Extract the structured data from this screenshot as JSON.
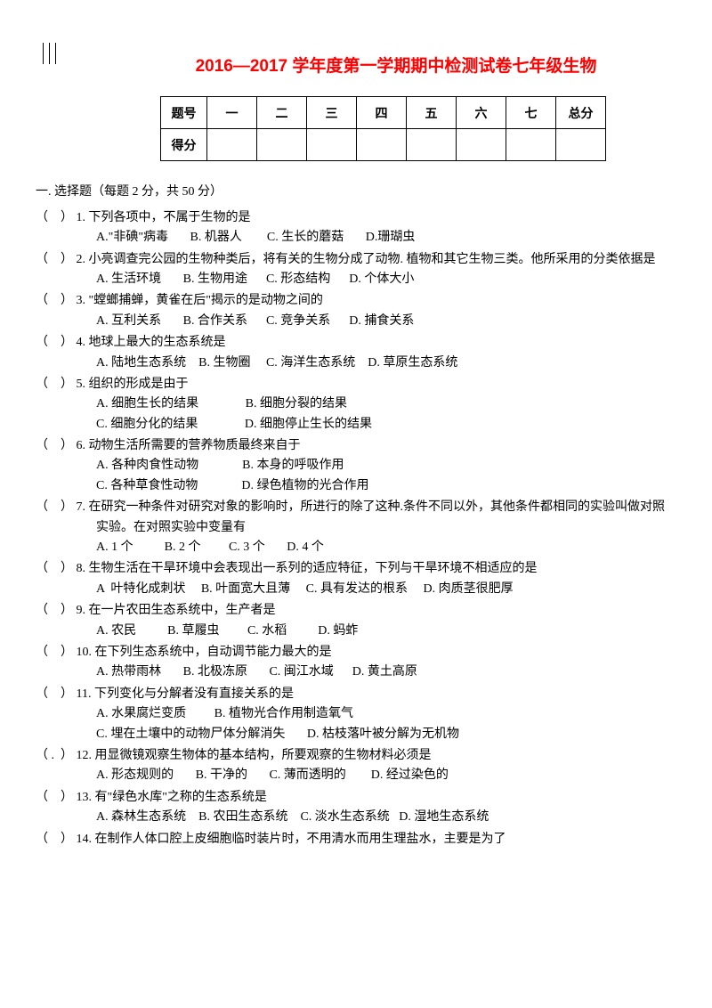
{
  "title": "2016—2017 学年度第一学期期中检测试卷七年级生物",
  "score_table": {
    "row1": [
      "题号",
      "一",
      "二",
      "三",
      "四",
      "五",
      "六",
      "七",
      "总分"
    ],
    "row2_label": "得分"
  },
  "section1": {
    "heading": "一. 选择题（每题 2 分，共 50 分）",
    "questions": [
      {
        "paren": "（",
        "close": "）",
        "num": "1.",
        "text": "下列各项中，不属于生物的是",
        "opts": "A.\"非碘\"病毒       B. 机器人        C. 生长的蘑菇       D.珊瑚虫"
      },
      {
        "paren": "（",
        "close": "）",
        "num": "2.",
        "text": "小亮调查完公园的生物种类后，将有关的生物分成了动物. 植物和其它生物三类。他所采用的分类依据是",
        "opts": "A. 生活环境       B. 生物用途      C. 形态结构      D. 个体大小"
      },
      {
        "paren": "（",
        "close": "）",
        "num": "3.",
        "text": "\"螳螂捕蝉，黄雀在后\"揭示的是动物之间的",
        "opts": "A. 互利关系       B. 合作关系      C. 竞争关系      D. 捕食关系"
      },
      {
        "paren": "（",
        "close": "）",
        "num": "4.",
        "text": "地球上最大的生态系统是",
        "opts": "A. 陆地生态系统    B. 生物圈     C. 海洋生态系统    D. 草原生态系统"
      },
      {
        "paren": "（",
        "close": "）",
        "num": "5.",
        "text": "组织的形成是由于",
        "opts": "A. 细胞生长的结果               B. 细胞分裂的结果\nC. 细胞分化的结果               D. 细胞停止生长的结果"
      },
      {
        "paren": "（",
        "close": "）",
        "num": "6.",
        "text": "动物生活所需要的营养物质最终来自于",
        "opts": "A. 各种肉食性动物              B. 本身的呼吸作用\nC. 各种草食性动物              D. 绿色植物的光合作用"
      },
      {
        "paren": "（",
        "close": "）",
        "num": "7.",
        "text": "在研究一种条件对研究对象的影响时，所进行的除了这种.条件不同以外，其他条件都相同的实验叫做对照实验。在对照实验中变量有",
        "opts": "A. 1 个          B. 2 个         C. 3 个       D. 4 个"
      },
      {
        "paren": "（",
        "close": "）",
        "num": "8.",
        "text": "生物生活在干旱环境中会表现出一系列的适应特征，下列与干旱环境不相适应的是",
        "opts": "A  叶特化成刺状     B. 叶面宽大且薄     C. 具有发达的根系     D. 肉质茎很肥厚"
      },
      {
        "paren": "（",
        "close": "）",
        "num": "9.",
        "text": "在一片农田生态系统中，生产者是",
        "opts": "A. 农民          B. 草履虫         C. 水稻          D. 蚂蚱"
      },
      {
        "paren": "（",
        "close": "）",
        "num": "10.",
        "text": "在下列生态系统中，自动调节能力最大的是",
        "opts": "A. 热带雨林       B. 北极冻原       C. 闽江水域      D. 黄土高原"
      },
      {
        "paren": "（",
        "close": "）",
        "num": "11.",
        "text": "下列变化与分解者没有直接关系的是",
        "opts": "A. 水果腐烂变质         B. 植物光合作用制造氧气\nC. 埋在土壤中的动物尸体分解消失       D. 枯枝落叶被分解为无机物"
      },
      {
        "paren": "（ .",
        "close": "）",
        "num": "12.",
        "text": "用显微镜观察生物体的基本结构，所要观察的生物材料必须是",
        "opts": "A. 形态规则的       B. 干净的       C. 薄而透明的        D. 经过染色的"
      },
      {
        "paren": "（",
        "close": "）",
        "num": "13.",
        "text": "有\"绿色水库\"之称的生态系统是",
        "opts": "A. 森林生态系统    B. 农田生态系统    C. 淡水生态系统   D. 湿地生态系统"
      },
      {
        "paren": "（",
        "close": "）",
        "num": "14.",
        "text": "在制作人体口腔上皮细胞临时装片时，不用清水而用生理盐水，主要是为了",
        "opts": ""
      }
    ]
  }
}
